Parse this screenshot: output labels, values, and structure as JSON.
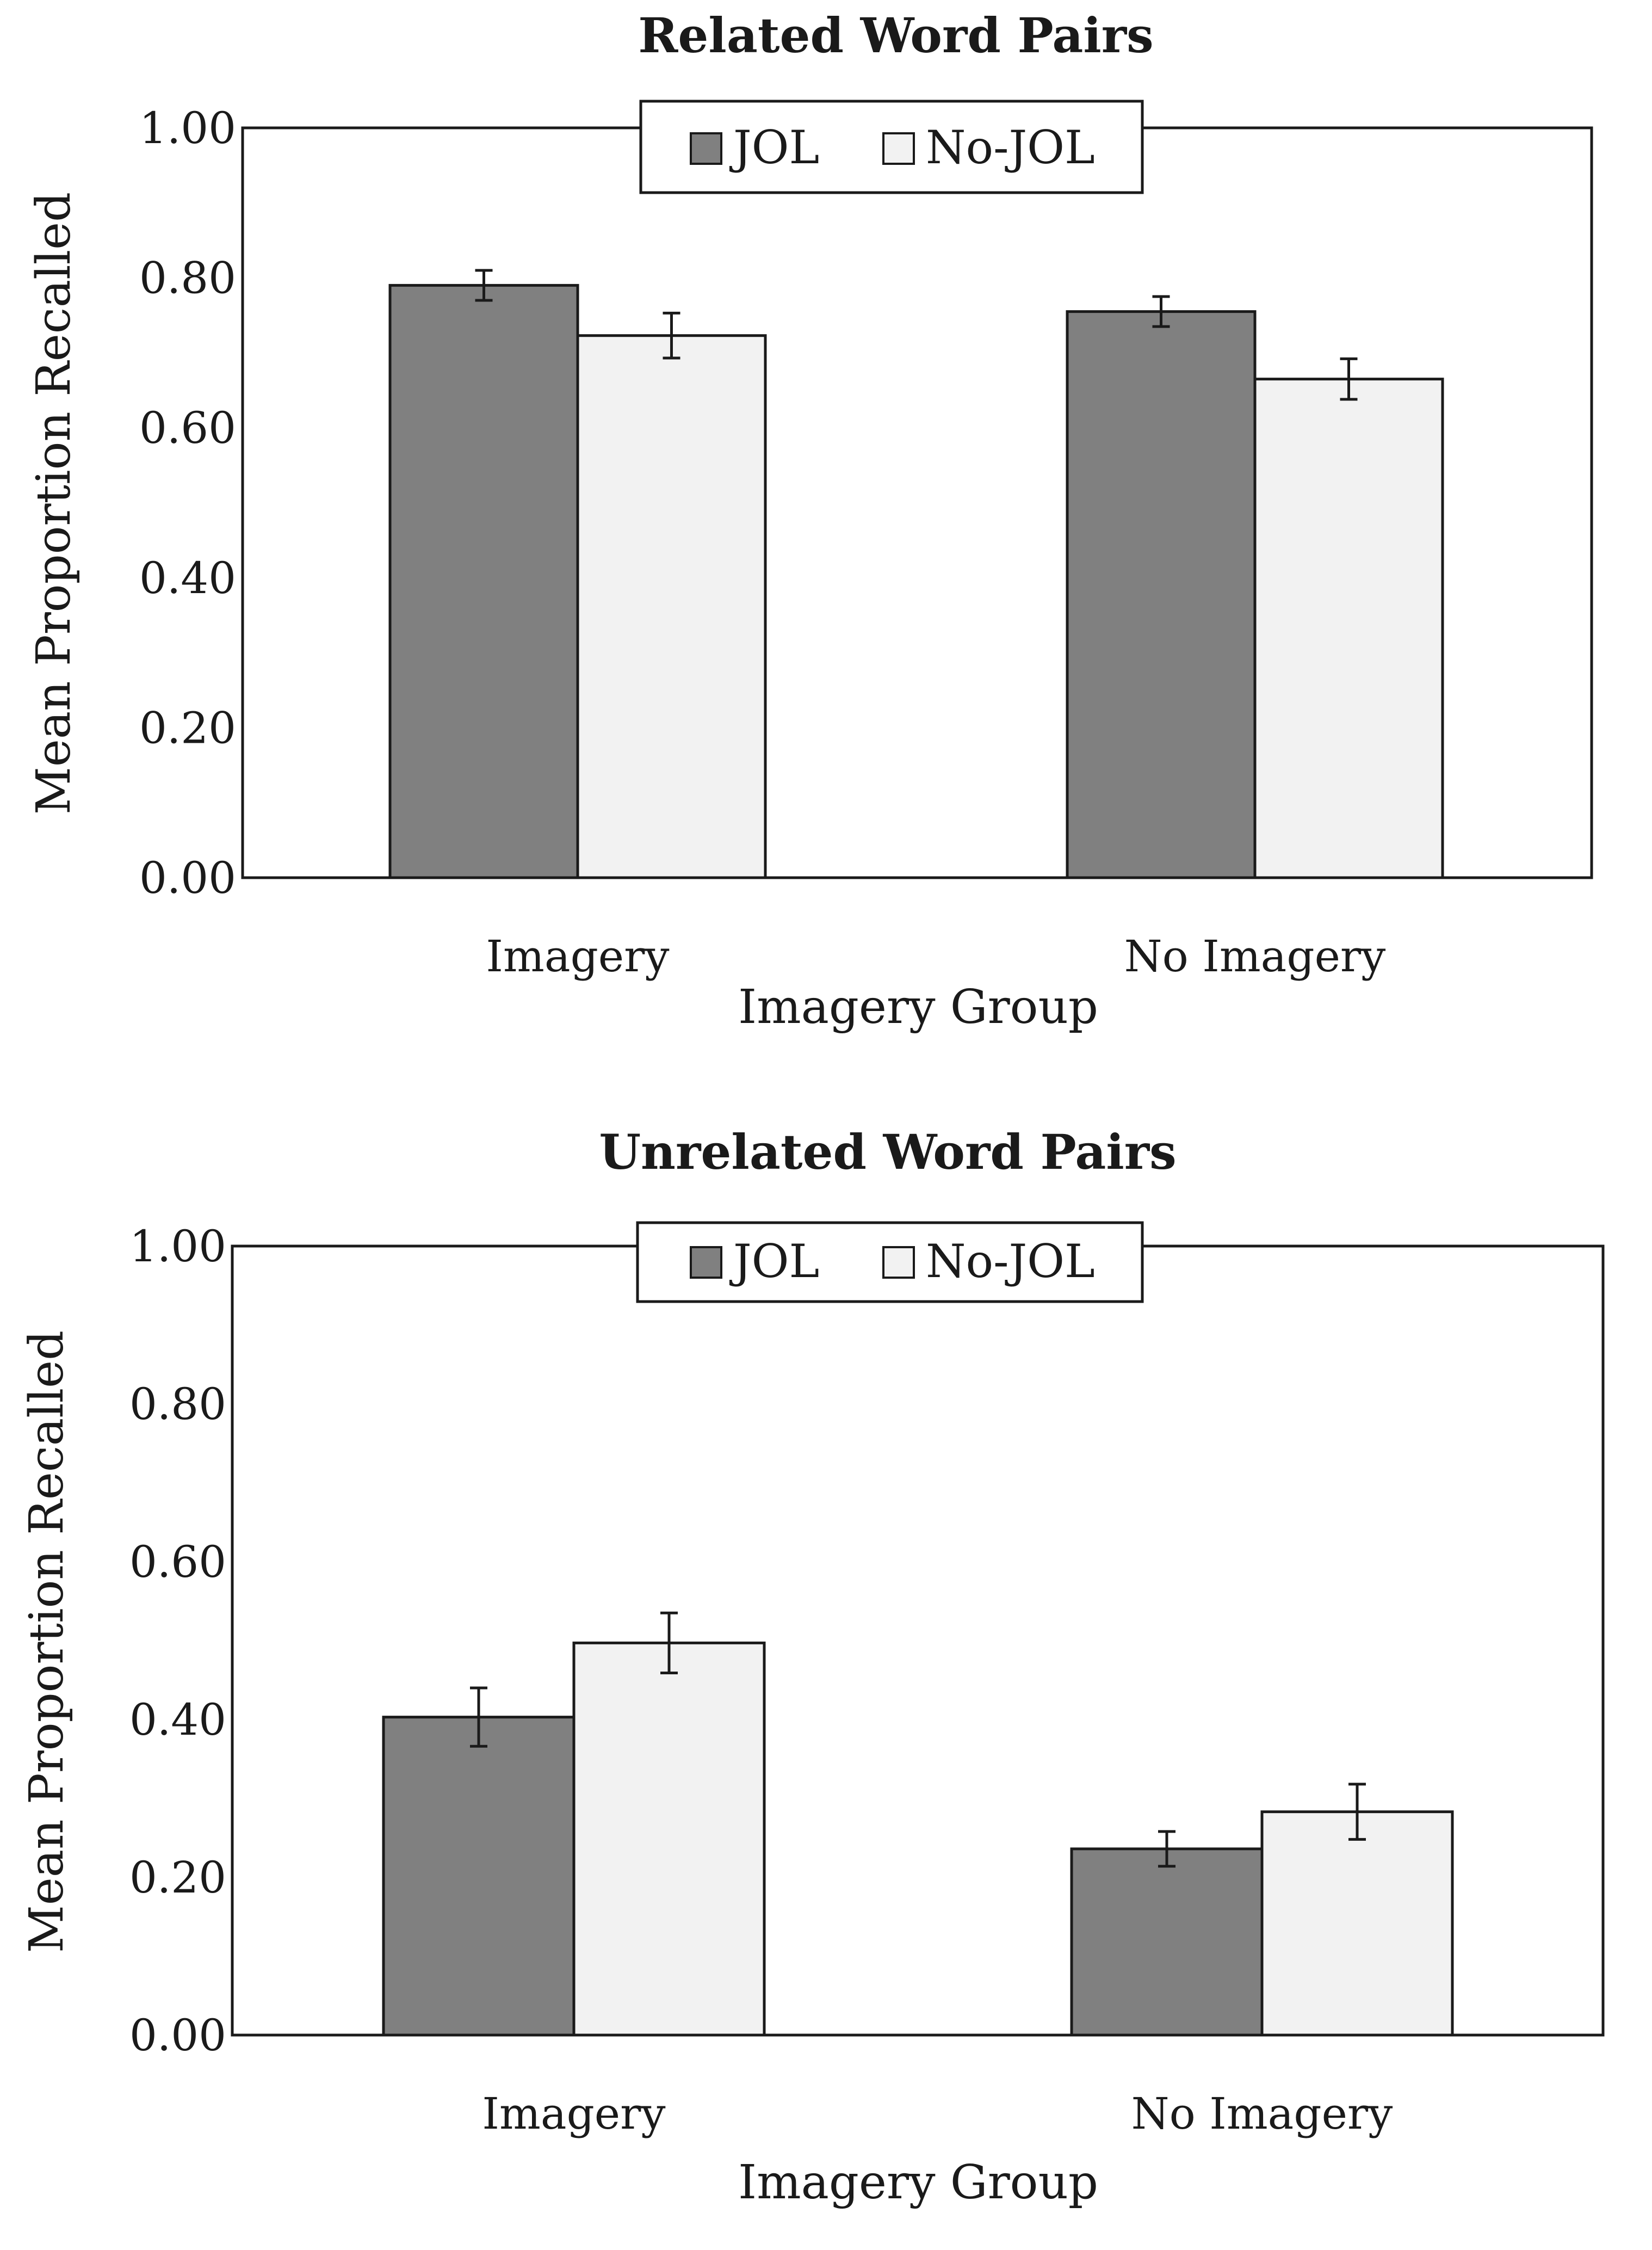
{
  "colors": {
    "jol": "#808080",
    "nojol": "#f2f2f2",
    "outline": "#1a1a1a",
    "background": "#ffffff"
  },
  "chart_data": [
    {
      "type": "bar",
      "title": "Related Word Pairs",
      "xlabel": "Imagery Group",
      "ylabel": "Mean Proportion Recalled",
      "categories": [
        "Imagery",
        "No Imagery"
      ],
      "ylim": [
        0,
        1
      ],
      "yticks": [
        "0.00",
        "0.20",
        "0.40",
        "0.60",
        "0.80",
        "1.00"
      ],
      "legend": {
        "position": "top-center",
        "entries": [
          "JOL",
          "No-JOL"
        ]
      },
      "grid": false,
      "series": [
        {
          "name": "JOL",
          "values": [
            0.79,
            0.755
          ],
          "errors": [
            0.02,
            0.02
          ]
        },
        {
          "name": "No-JOL",
          "values": [
            0.723,
            0.665
          ],
          "errors": [
            0.03,
            0.027
          ]
        }
      ]
    },
    {
      "type": "bar",
      "title": "Unrelated Word Pairs",
      "xlabel": "Imagery Group",
      "ylabel": "Mean Proportion Recalled",
      "categories": [
        "Imagery",
        "No Imagery"
      ],
      "ylim": [
        0,
        1
      ],
      "yticks": [
        "0.00",
        "0.20",
        "0.40",
        "0.60",
        "0.80",
        "1.00"
      ],
      "legend": {
        "position": "top-center",
        "entries": [
          "JOL",
          "No-JOL"
        ]
      },
      "grid": false,
      "series": [
        {
          "name": "JOL",
          "values": [
            0.403,
            0.236
          ],
          "errors": [
            0.037,
            0.022
          ]
        },
        {
          "name": "No-JOL",
          "values": [
            0.497,
            0.283
          ],
          "errors": [
            0.038,
            0.035
          ]
        }
      ]
    }
  ]
}
